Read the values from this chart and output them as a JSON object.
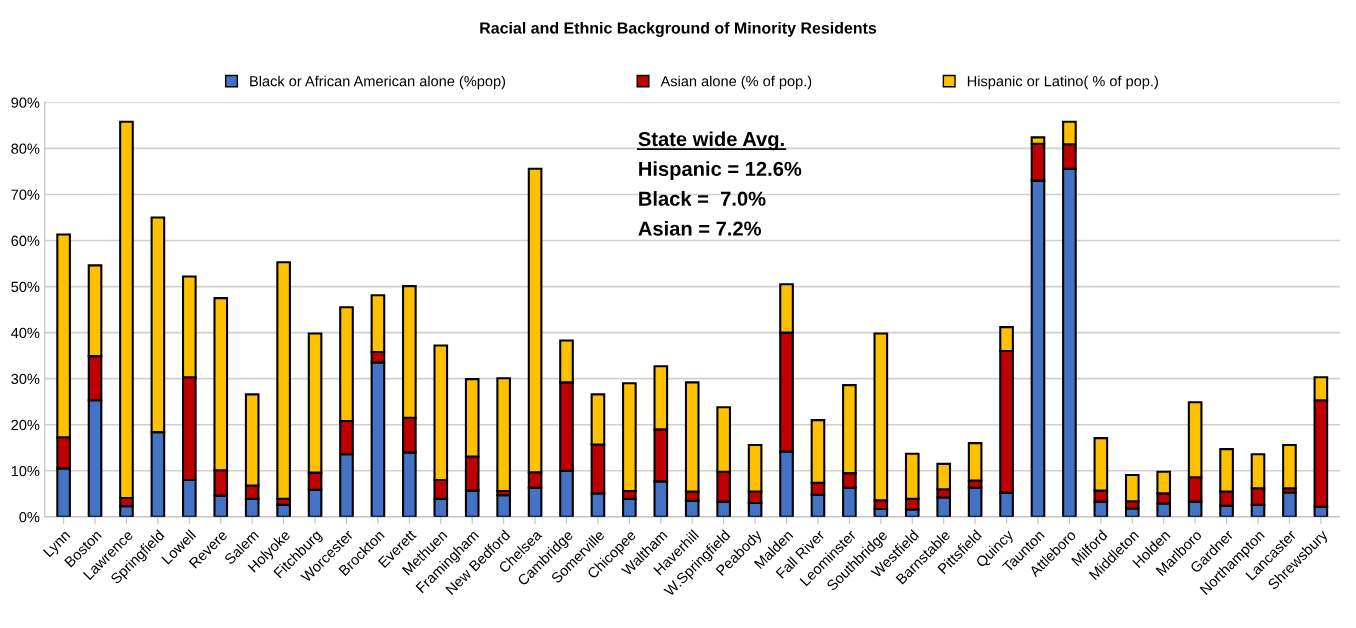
{
  "chart_data": {
    "type": "bar",
    "stacked": true,
    "title": "Racial and Ethnic Background of Minority Residents",
    "categories": [
      "Lynn",
      "Boston",
      "Lawrence",
      "Springfield",
      "Lowell",
      "Revere",
      "Salem",
      "Holyoke",
      "Fitchburg",
      "Worcester",
      "Brockton",
      "Everett",
      "Methuen",
      "Framingham",
      "New Bedford",
      "Chelsea",
      "Cambridge",
      "Somerville",
      "Chicopee",
      "Waltham",
      "Haverhill",
      "W.Springfield",
      "Peabody",
      "Malden",
      "Fall River",
      "Leominster",
      "Southbridge",
      "Westfield",
      "Barnstable",
      "Pittsfield",
      "Quincy",
      "Taunton",
      "Attleboro",
      "Milford",
      "Middleton",
      "Holden",
      "Marlboro",
      "Gardner",
      "Northampton",
      "Lancaster",
      "Shrewsbury"
    ],
    "series": [
      {
        "name": "Black or African American alone (%pop)",
        "color": "#4472c4",
        "values": [
          10.5,
          25.3,
          2.3,
          18.4,
          8.0,
          4.6,
          3.9,
          2.6,
          5.9,
          13.6,
          33.5,
          14.0,
          3.9,
          5.7,
          4.7,
          6.3,
          10.0,
          5.1,
          3.9,
          7.7,
          3.5,
          3.3,
          3.0,
          14.2,
          4.8,
          6.3,
          1.7,
          1.6,
          4.2,
          6.3,
          5.2,
          73.0,
          75.6,
          3.3,
          1.8,
          2.9,
          3.3,
          2.4,
          2.6,
          5.3,
          2.2
        ]
      },
      {
        "name": "Asian alone (% of pop.)",
        "color": "#c00000",
        "values": [
          6.8,
          9.6,
          1.8,
          null,
          22.3,
          5.5,
          2.9,
          1.3,
          3.7,
          7.2,
          2.3,
          7.5,
          4.1,
          7.4,
          0.9,
          3.4,
          19.2,
          10.6,
          1.7,
          11.3,
          2.0,
          6.5,
          2.5,
          25.8,
          2.6,
          3.2,
          1.9,
          2.3,
          1.8,
          1.6,
          30.8,
          8.0,
          5.3,
          2.4,
          1.6,
          2.2,
          5.3,
          3.1,
          3.6,
          0.9,
          23.1
        ]
      },
      {
        "name": "Hispanic or Latino( % of pop.)",
        "color": "#ffc000",
        "values": [
          44.0,
          19.7,
          81.7,
          46.6,
          21.9,
          37.4,
          19.8,
          51.4,
          30.2,
          24.7,
          12.3,
          28.6,
          29.2,
          16.8,
          24.5,
          65.9,
          9.1,
          10.9,
          23.4,
          13.7,
          23.7,
          14.0,
          10.1,
          10.5,
          13.6,
          19.1,
          36.2,
          9.8,
          5.5,
          8.1,
          5.2,
          1.4,
          4.9,
          11.4,
          5.7,
          4.7,
          16.3,
          9.2,
          7.4,
          9.4,
          5.0
        ]
      }
    ],
    "ylim": [
      0,
      90
    ],
    "yticks": [
      {
        "value": 0,
        "label": "0%"
      },
      {
        "value": 10,
        "label": "10%"
      },
      {
        "value": 20,
        "label": "20%"
      },
      {
        "value": 30,
        "label": "30%"
      },
      {
        "value": 40,
        "label": "40%"
      },
      {
        "value": 50,
        "label": "50%"
      },
      {
        "value": 60,
        "label": "60%"
      },
      {
        "value": 70,
        "label": "70%"
      },
      {
        "value": 80,
        "label": "80%"
      },
      {
        "value": 90,
        "label": "90%"
      }
    ],
    "grid": "y",
    "legend": "top",
    "annotations": [
      "State wide Avg.",
      "Hispanic = 12.6%",
      "Black =  7.0%",
      "Asian = 7.2%"
    ]
  }
}
